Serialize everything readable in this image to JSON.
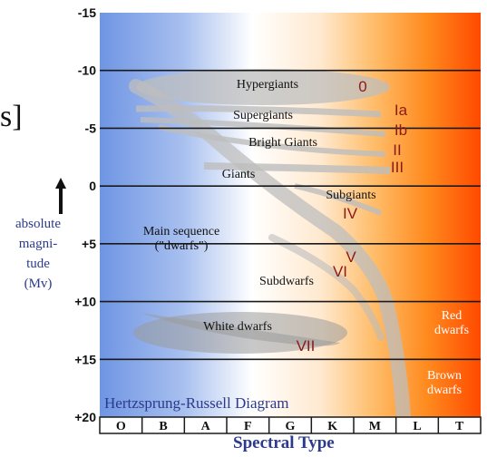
{
  "fragment": "s]",
  "axis_caption": [
    "absolute",
    "magni-",
    "tude",
    "(Mv)"
  ],
  "title": "Hertzsprung-Russell Diagram",
  "x_axis_label": "Spectral Type",
  "colors": {
    "hot": "#6f95e3",
    "mid": "#ffffff",
    "warm": "#ffb347",
    "cool": "#ff4a00",
    "grid": "#1a1a1a",
    "roman": "#8b1a1a",
    "band": "#bdbdbd"
  },
  "chart_data": {
    "type": "diagram",
    "y_axis": {
      "ticks": [
        "-15",
        "-10",
        "-5",
        "0",
        "+5",
        "+10",
        "+15",
        "+20"
      ],
      "values": [
        -15,
        -10,
        -5,
        0,
        5,
        10,
        15,
        20
      ],
      "direction": "down"
    },
    "spectral_classes": [
      "O",
      "B",
      "A",
      "F",
      "G",
      "K",
      "M",
      "L",
      "T"
    ],
    "regions": [
      {
        "name": "Hypergiants",
        "class": "0"
      },
      {
        "name": "Supergiants",
        "class": "Ia"
      },
      {
        "name": "",
        "class": "Ib"
      },
      {
        "name": "Bright Giants",
        "class": "II"
      },
      {
        "name": "Giants",
        "class": "III"
      },
      {
        "name": "Subgiants",
        "class": "IV"
      },
      {
        "name": "Main sequence\n(\"dwarfs\")",
        "class": "V"
      },
      {
        "name": "Subdwarfs",
        "class": "VI"
      },
      {
        "name": "White dwarfs",
        "class": "VII"
      },
      {
        "name": "Red\ndwarfs",
        "class": ""
      },
      {
        "name": "Brown\ndwarfs",
        "class": ""
      }
    ]
  }
}
